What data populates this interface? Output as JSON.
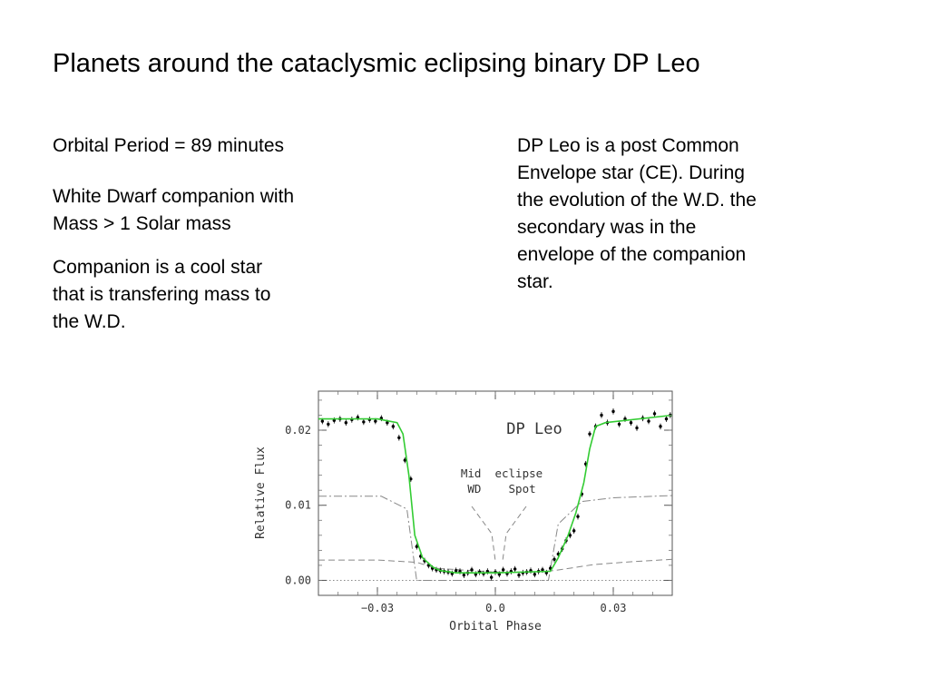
{
  "slide": {
    "title": "Planets around the cataclysmic eclipsing binary DP Leo",
    "left_paragraphs": [
      "Orbital Period = 89 minutes",
      "White Dwarf companion with\nMass > 1 Solar mass",
      "Companion is a cool star\nthat is transfering mass to\nthe W.D."
    ],
    "right_paragraph": "DP Leo is a post Common\nEnvelope star (CE). During\nthe evolution of the W.D. the\nsecondary was in the\nenvelope of the companion\nstar."
  },
  "chart_data": {
    "type": "line",
    "title": "DP Leo",
    "xlabel": "Orbital Phase",
    "ylabel": "Relative Flux",
    "xlim": [
      -0.045,
      0.045
    ],
    "ylim": [
      -0.002,
      0.0252
    ],
    "x_ticks": [
      "−0.03",
      "0.0",
      "0.03"
    ],
    "x_tick_values": [
      -0.03,
      0.0,
      0.03
    ],
    "y_ticks": [
      "0.00",
      "0.01",
      "0.02"
    ],
    "y_tick_values": [
      0.0,
      0.01,
      0.02
    ],
    "annotations": [
      "Mid  eclipse",
      "WD    Spot"
    ],
    "grid": false,
    "colors": {
      "fit": "#33cc33",
      "points": "#000000",
      "components": "#888888"
    },
    "series": [
      {
        "style": "green-solid",
        "x": [
          -0.045,
          -0.03,
          -0.025,
          -0.0235,
          -0.022,
          -0.0205,
          -0.0185,
          -0.016,
          -0.014,
          -0.01,
          0.0,
          0.014,
          0.016,
          0.0185,
          0.0205,
          0.0225,
          0.024,
          0.0255,
          0.028,
          0.045
        ],
        "y": [
          0.0215,
          0.0215,
          0.021,
          0.0195,
          0.014,
          0.006,
          0.003,
          0.0018,
          0.0013,
          0.001,
          0.001,
          0.0012,
          0.003,
          0.006,
          0.009,
          0.013,
          0.0175,
          0.0205,
          0.021,
          0.022
        ]
      },
      {
        "style": "dash-dot",
        "x": [
          -0.045,
          -0.029,
          -0.0225,
          -0.02,
          0.0,
          0.0135,
          0.016,
          0.022,
          0.03,
          0.045
        ],
        "y": [
          0.0112,
          0.0112,
          0.0095,
          0.0,
          0.0,
          0.0,
          0.0075,
          0.0105,
          0.011,
          0.0113
        ]
      },
      {
        "style": "dashed",
        "x": [
          -0.045,
          -0.03,
          -0.02,
          -0.015,
          0.0,
          0.01,
          0.015,
          0.025,
          0.035,
          0.045
        ],
        "y": [
          0.0027,
          0.0027,
          0.0024,
          0.0016,
          0.0011,
          0.0011,
          0.0013,
          0.0021,
          0.0025,
          0.0028
        ]
      },
      {
        "style": "dotted",
        "x": [
          -0.045,
          0.045
        ],
        "y": [
          0.0,
          0.0
        ]
      }
    ],
    "points": {
      "x": [
        -0.044,
        -0.0425,
        -0.041,
        -0.0395,
        -0.038,
        -0.0365,
        -0.035,
        -0.0335,
        -0.032,
        -0.0305,
        -0.029,
        -0.0275,
        -0.026,
        -0.0245,
        -0.023,
        -0.0215,
        -0.02,
        -0.019,
        -0.018,
        -0.017,
        -0.016,
        -0.015,
        -0.014,
        -0.013,
        -0.012,
        -0.011,
        -0.01,
        -0.009,
        -0.008,
        -0.007,
        -0.006,
        -0.005,
        -0.004,
        -0.003,
        -0.002,
        -0.001,
        0.0,
        0.001,
        0.002,
        0.003,
        0.004,
        0.005,
        0.006,
        0.007,
        0.008,
        0.009,
        0.01,
        0.011,
        0.012,
        0.013,
        0.014,
        0.015,
        0.016,
        0.017,
        0.018,
        0.019,
        0.02,
        0.021,
        0.022,
        0.023,
        0.024,
        0.0255,
        0.027,
        0.0285,
        0.03,
        0.0315,
        0.033,
        0.0345,
        0.036,
        0.0375,
        0.039,
        0.0405,
        0.042,
        0.0435,
        0.0445
      ],
      "y": [
        0.0212,
        0.0208,
        0.0213,
        0.0215,
        0.021,
        0.0214,
        0.0217,
        0.0211,
        0.0214,
        0.0212,
        0.0216,
        0.021,
        0.0205,
        0.019,
        0.016,
        0.0135,
        0.0045,
        0.0032,
        0.0026,
        0.002,
        0.0016,
        0.0014,
        0.0013,
        0.0012,
        0.0011,
        0.0009,
        0.0013,
        0.0012,
        0.0007,
        0.001,
        0.0014,
        0.0008,
        0.0011,
        0.0009,
        0.0012,
        0.0004,
        0.0011,
        0.0008,
        0.0014,
        0.0009,
        0.0012,
        0.0015,
        0.0007,
        0.001,
        0.0011,
        0.0013,
        0.0008,
        0.0012,
        0.0014,
        0.001,
        0.0016,
        0.0028,
        0.0035,
        0.0042,
        0.0053,
        0.006,
        0.0066,
        0.0085,
        0.0115,
        0.0155,
        0.0195,
        0.0205,
        0.022,
        0.021,
        0.0225,
        0.0208,
        0.0215,
        0.021,
        0.0203,
        0.0216,
        0.0212,
        0.0222,
        0.0205,
        0.0215,
        0.022
      ],
      "err": 0.0004
    }
  }
}
